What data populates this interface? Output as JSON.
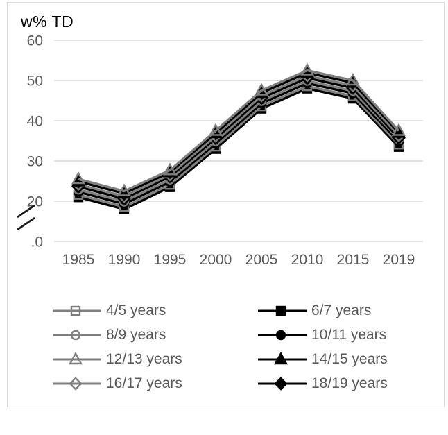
{
  "chart_data": {
    "type": "line",
    "title": "w% TD",
    "ylabel": "w% TD",
    "xlabel": "",
    "x_categories": [
      "1985",
      "1990",
      "1995",
      "2000",
      "2005",
      "2010",
      "2015",
      "2019"
    ],
    "y_ticks": [
      {
        "label": "60",
        "value": 60
      },
      {
        "label": "50",
        "value": 50
      },
      {
        "label": "40",
        "value": 40
      },
      {
        "label": "30",
        "value": 30
      },
      {
        "label": "20",
        "value": 20
      },
      {
        "label": ".0",
        "value": 0,
        "broken": true
      }
    ],
    "ylim": [
      0,
      60
    ],
    "axis_break_between": [
      0,
      20
    ],
    "grid": "horizontal",
    "legend_position": "bottom",
    "colors": {
      "gray_series": "#7f7f7f",
      "black_series": "#000000",
      "grid": "#d9d9d9",
      "frame_border": "#d9d9d9",
      "tick_text": "#595959",
      "legend_text": "#595959",
      "title_text": "#000000",
      "break_symbol": "#1a1a1a"
    },
    "series": [
      {
        "name": "4/5 years",
        "marker": "square",
        "fill": "open",
        "color": "#7f7f7f",
        "values": [
          21.6,
          18.6,
          24.1,
          33.6,
          43.6,
          48.6,
          46.1,
          34.1
        ]
      },
      {
        "name": "6/7 years",
        "marker": "square",
        "fill": "filled",
        "color": "#000000",
        "values": [
          21.0,
          18.0,
          23.5,
          33.0,
          43.0,
          48.0,
          45.5,
          33.5
        ]
      },
      {
        "name": "8/9 years",
        "marker": "circle",
        "fill": "open",
        "color": "#7f7f7f",
        "values": [
          22.9,
          19.9,
          25.4,
          34.9,
          44.9,
          49.9,
          47.4,
          35.4
        ]
      },
      {
        "name": "10/11 years",
        "marker": "circle",
        "fill": "filled",
        "color": "#000000",
        "values": [
          22.3,
          19.3,
          24.8,
          34.3,
          44.3,
          49.3,
          46.8,
          34.8
        ]
      },
      {
        "name": "12/13 years",
        "marker": "triangle",
        "fill": "open",
        "color": "#7f7f7f",
        "values": [
          25.5,
          22.5,
          27.7,
          37.5,
          47.5,
          52.5,
          50.0,
          37.5
        ]
      },
      {
        "name": "14/15 years",
        "marker": "triangle",
        "fill": "filled",
        "color": "#000000",
        "values": [
          24.9,
          21.9,
          27.2,
          36.9,
          46.9,
          51.9,
          49.4,
          37.0
        ]
      },
      {
        "name": "16/17 years",
        "marker": "diamond",
        "fill": "open",
        "color": "#7f7f7f",
        "values": [
          24.2,
          21.2,
          26.6,
          36.2,
          46.2,
          51.2,
          48.7,
          36.3
        ]
      },
      {
        "name": "18/19 years",
        "marker": "diamond",
        "fill": "filled",
        "color": "#000000",
        "values": [
          23.6,
          20.6,
          26.1,
          35.6,
          45.6,
          50.6,
          48.1,
          35.7
        ]
      }
    ],
    "draw_order": [
      "6/7 years",
      "4/5 years",
      "10/11 years",
      "8/9 years",
      "18/19 years",
      "16/17 years",
      "14/15 years",
      "12/13 years"
    ]
  }
}
